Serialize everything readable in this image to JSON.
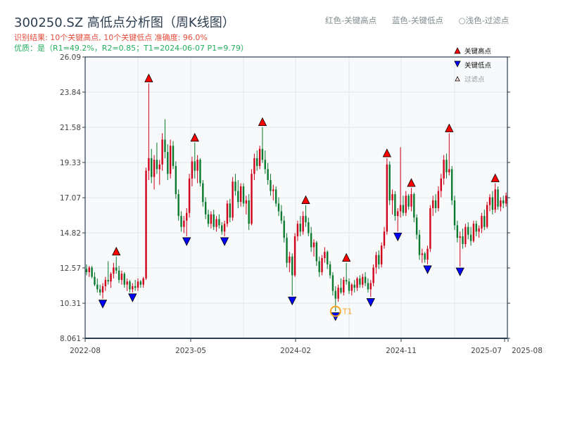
{
  "header": {
    "title": "300250.SZ 高低点分析图（周K线图）",
    "result": "识别结果: 10个关键高点, 10个关键低点   准确度: 96.0%",
    "quality": "优质：是（R1=49.2%，R2=0.85；T1=2024-06-07 P1=9.79）",
    "hints": [
      "红色-关键高点",
      "蓝色-关键低点",
      "○浅色-过滤点"
    ]
  },
  "chart_data": {
    "type": "candlestick",
    "period": "weekly",
    "start": "2022-08-01",
    "ylim": [
      8.061,
      26.09
    ],
    "yticks": [
      "26.09",
      "23.84",
      "21.58",
      "19.33",
      "17.07",
      "14.82",
      "12.57",
      "10.31",
      "8.061"
    ],
    "xticks": [
      "2022-08",
      "2023-05",
      "2024-02",
      "2024-11",
      "2025-07",
      "2025-08"
    ],
    "grid": true,
    "legend": {
      "placement": "top-right",
      "items": [
        "关键高点",
        "关键低点",
        "过滤点"
      ]
    },
    "colors": {
      "up": "#d0021b",
      "down": "#0a7a2f",
      "high": "#ff0000",
      "low": "#0000ff",
      "t1": "#f5a623"
    },
    "candles": [
      [
        12.5,
        12.8,
        12.1,
        12.3
      ],
      [
        12.3,
        12.7,
        12.0,
        12.6
      ],
      [
        12.6,
        12.7,
        11.9,
        12.0
      ],
      [
        12.0,
        12.3,
        11.4,
        11.5
      ],
      [
        11.5,
        11.9,
        11.0,
        11.2
      ],
      [
        11.2,
        11.5,
        10.8,
        11.0
      ],
      [
        11.0,
        11.6,
        10.6,
        11.4
      ],
      [
        11.4,
        12.0,
        11.1,
        11.8
      ],
      [
        11.8,
        13.0,
        11.5,
        11.7
      ],
      [
        11.7,
        12.3,
        11.3,
        12.2
      ],
      [
        12.2,
        12.9,
        11.9,
        12.6
      ],
      [
        12.6,
        13.3,
        12.2,
        12.4
      ],
      [
        12.4,
        12.7,
        11.6,
        11.8
      ],
      [
        11.8,
        12.4,
        11.5,
        12.2
      ],
      [
        12.2,
        12.3,
        11.3,
        11.5
      ],
      [
        11.5,
        11.9,
        11.1,
        11.7
      ],
      [
        11.7,
        11.8,
        11.0,
        11.2
      ],
      [
        11.2,
        11.6,
        11.0,
        11.4
      ],
      [
        11.4,
        11.8,
        11.1,
        11.3
      ],
      [
        11.3,
        11.9,
        11.1,
        11.7
      ],
      [
        11.7,
        11.8,
        11.3,
        11.5
      ],
      [
        11.5,
        12.0,
        11.3,
        11.9
      ],
      [
        11.9,
        19.0,
        11.8,
        18.8
      ],
      [
        18.8,
        24.4,
        18.2,
        19.6
      ],
      [
        19.6,
        20.2,
        18.0,
        18.4
      ],
      [
        18.4,
        19.8,
        17.6,
        19.5
      ],
      [
        19.5,
        20.6,
        18.6,
        18.9
      ],
      [
        18.9,
        19.5,
        17.9,
        19.2
      ],
      [
        19.2,
        21.2,
        18.8,
        20.8
      ],
      [
        20.8,
        22.1,
        19.6,
        20.0
      ],
      [
        20.0,
        20.5,
        18.2,
        18.6
      ],
      [
        18.6,
        20.8,
        18.3,
        20.4
      ],
      [
        20.4,
        20.7,
        18.9,
        19.1
      ],
      [
        19.1,
        19.4,
        17.0,
        17.3
      ],
      [
        17.3,
        17.6,
        15.6,
        15.9
      ],
      [
        15.9,
        16.2,
        14.9,
        15.2
      ],
      [
        15.2,
        15.9,
        14.8,
        15.6
      ],
      [
        15.6,
        16.4,
        14.6,
        16.1
      ],
      [
        16.1,
        18.6,
        15.8,
        18.3
      ],
      [
        18.3,
        19.7,
        17.8,
        19.4
      ],
      [
        19.4,
        20.6,
        18.3,
        18.8
      ],
      [
        18.8,
        19.8,
        18.0,
        19.5
      ],
      [
        19.5,
        19.6,
        17.8,
        18.0
      ],
      [
        18.0,
        18.2,
        16.5,
        16.8
      ],
      [
        16.8,
        17.1,
        15.7,
        16.0
      ],
      [
        16.0,
        16.3,
        15.2,
        15.4
      ],
      [
        15.4,
        16.2,
        15.1,
        16.0
      ],
      [
        16.0,
        16.3,
        15.0,
        15.2
      ],
      [
        15.2,
        15.9,
        14.9,
        15.7
      ],
      [
        15.7,
        16.0,
        15.1,
        15.3
      ],
      [
        15.3,
        15.5,
        14.7,
        14.9
      ],
      [
        14.9,
        15.6,
        14.6,
        15.4
      ],
      [
        15.4,
        16.9,
        15.2,
        16.7
      ],
      [
        16.7,
        17.0,
        15.5,
        15.8
      ],
      [
        15.8,
        18.4,
        15.6,
        18.1
      ],
      [
        18.1,
        18.6,
        17.2,
        17.5
      ],
      [
        17.5,
        18.2,
        16.4,
        16.8
      ],
      [
        16.8,
        18.0,
        16.5,
        17.8
      ],
      [
        17.8,
        18.0,
        16.5,
        16.7
      ],
      [
        16.7,
        17.2,
        16.0,
        16.9
      ],
      [
        16.9,
        17.3,
        15.0,
        15.4
      ],
      [
        15.4,
        18.9,
        15.3,
        18.6
      ],
      [
        18.6,
        19.9,
        18.2,
        19.6
      ],
      [
        19.6,
        20.1,
        18.8,
        19.1
      ],
      [
        19.1,
        20.4,
        18.9,
        20.2
      ],
      [
        20.2,
        21.6,
        19.3,
        19.5
      ],
      [
        19.5,
        20.1,
        18.6,
        18.9
      ],
      [
        18.9,
        19.3,
        17.9,
        18.2
      ],
      [
        18.2,
        18.6,
        17.2,
        17.5
      ],
      [
        17.5,
        17.9,
        16.9,
        17.6
      ],
      [
        17.6,
        17.8,
        16.5,
        16.7
      ],
      [
        16.7,
        17.1,
        15.9,
        16.2
      ],
      [
        16.2,
        16.6,
        15.4,
        15.6
      ],
      [
        15.6,
        15.9,
        14.2,
        14.5
      ],
      [
        14.5,
        14.8,
        12.6,
        12.9
      ],
      [
        12.9,
        13.6,
        12.3,
        13.3
      ],
      [
        13.3,
        13.5,
        10.8,
        12.1
      ],
      [
        12.1,
        14.8,
        12.0,
        14.6
      ],
      [
        14.6,
        15.6,
        14.3,
        15.4
      ],
      [
        15.4,
        15.9,
        14.6,
        14.9
      ],
      [
        14.9,
        16.2,
        14.7,
        15.9
      ],
      [
        15.9,
        16.6,
        15.2,
        15.5
      ],
      [
        15.5,
        15.8,
        14.6,
        14.8
      ],
      [
        14.8,
        15.2,
        13.6,
        13.9
      ],
      [
        13.9,
        14.4,
        13.3,
        14.2
      ],
      [
        14.2,
        14.3,
        12.7,
        13.0
      ],
      [
        13.0,
        13.3,
        12.0,
        12.3
      ],
      [
        12.3,
        13.4,
        12.1,
        13.2
      ],
      [
        13.2,
        13.9,
        12.9,
        13.6
      ],
      [
        13.6,
        13.7,
        12.5,
        12.8
      ],
      [
        12.8,
        13.0,
        11.9,
        12.1
      ],
      [
        12.1,
        12.3,
        10.8,
        11.1
      ],
      [
        11.1,
        11.4,
        9.79,
        10.6
      ],
      [
        10.6,
        11.5,
        10.4,
        11.3
      ],
      [
        11.3,
        11.9,
        10.9,
        11.0
      ],
      [
        11.0,
        12.0,
        10.8,
        11.8
      ],
      [
        11.8,
        12.9,
        11.5,
        11.7
      ],
      [
        11.7,
        11.9,
        10.9,
        11.1
      ],
      [
        11.1,
        11.6,
        10.8,
        11.5
      ],
      [
        11.5,
        11.8,
        11.0,
        11.3
      ],
      [
        11.3,
        12.0,
        11.1,
        11.9
      ],
      [
        11.9,
        12.1,
        11.3,
        11.5
      ],
      [
        11.5,
        12.2,
        11.3,
        12.0
      ],
      [
        12.0,
        12.3,
        11.4,
        11.6
      ],
      [
        11.6,
        11.9,
        11.0,
        11.2
      ],
      [
        11.2,
        11.8,
        10.7,
        11.6
      ],
      [
        11.6,
        12.8,
        11.4,
        12.6
      ],
      [
        12.6,
        13.6,
        12.2,
        13.4
      ],
      [
        13.4,
        13.7,
        12.5,
        12.8
      ],
      [
        12.8,
        14.2,
        12.6,
        14.0
      ],
      [
        14.0,
        15.2,
        13.8,
        14.9
      ],
      [
        14.9,
        19.6,
        14.7,
        19.2
      ],
      [
        19.2,
        19.4,
        16.6,
        16.9
      ],
      [
        16.9,
        17.6,
        16.0,
        17.3
      ],
      [
        17.3,
        17.5,
        15.6,
        15.9
      ],
      [
        15.9,
        16.4,
        14.9,
        16.2
      ],
      [
        16.2,
        20.3,
        15.8,
        16.6
      ],
      [
        16.6,
        17.2,
        15.9,
        16.1
      ],
      [
        16.1,
        17.5,
        15.9,
        17.2
      ],
      [
        17.2,
        17.3,
        16.3,
        16.5
      ],
      [
        16.5,
        17.7,
        16.2,
        17.3
      ],
      [
        17.3,
        17.4,
        15.5,
        15.8
      ],
      [
        15.8,
        16.0,
        14.4,
        14.7
      ],
      [
        14.7,
        15.0,
        13.1,
        13.4
      ],
      [
        13.4,
        13.8,
        12.9,
        13.5
      ],
      [
        13.5,
        13.6,
        12.9,
        13.1
      ],
      [
        13.1,
        14.0,
        12.8,
        13.8
      ],
      [
        13.8,
        16.6,
        13.6,
        16.4
      ],
      [
        16.4,
        17.2,
        15.9,
        16.9
      ],
      [
        16.9,
        17.3,
        16.1,
        16.4
      ],
      [
        16.4,
        17.8,
        16.2,
        17.5
      ],
      [
        17.5,
        18.6,
        17.1,
        18.3
      ],
      [
        18.3,
        19.8,
        17.9,
        19.5
      ],
      [
        19.5,
        19.9,
        18.3,
        18.7
      ],
      [
        18.7,
        21.2,
        18.5,
        18.9
      ],
      [
        18.9,
        19.1,
        16.6,
        16.9
      ],
      [
        16.9,
        17.2,
        15.0,
        15.3
      ],
      [
        15.3,
        15.6,
        14.2,
        14.5
      ],
      [
        14.5,
        14.9,
        12.66,
        14.6
      ],
      [
        14.6,
        15.1,
        13.8,
        14.1
      ],
      [
        14.1,
        15.4,
        13.9,
        15.2
      ],
      [
        15.2,
        15.5,
        14.4,
        14.7
      ],
      [
        14.7,
        15.2,
        14.0,
        14.3
      ],
      [
        14.3,
        15.6,
        14.2,
        15.4
      ],
      [
        15.4,
        15.6,
        14.6,
        14.9
      ],
      [
        14.9,
        15.3,
        14.5,
        15.1
      ],
      [
        15.1,
        16.1,
        14.8,
        15.9
      ],
      [
        15.9,
        16.3,
        15.0,
        15.2
      ],
      [
        15.2,
        16.8,
        15.1,
        16.6
      ],
      [
        16.6,
        17.3,
        16.2,
        17.1
      ],
      [
        17.1,
        17.5,
        16.0,
        16.3
      ],
      [
        16.3,
        18.0,
        16.1,
        17.6
      ],
      [
        17.6,
        17.8,
        16.3,
        16.5
      ],
      [
        16.5,
        17.1,
        16.2,
        16.9
      ],
      [
        16.9,
        17.2,
        16.4,
        16.7
      ],
      [
        16.7,
        17.4,
        16.5,
        17.2
      ]
    ],
    "key_highs": [
      11,
      23,
      40,
      65,
      81,
      96,
      111,
      120,
      134,
      151
    ],
    "key_lows": [
      6,
      17,
      37,
      51,
      76,
      92,
      105,
      115,
      126,
      138
    ],
    "t1": {
      "index": 92,
      "label": "T1",
      "price": 9.79
    }
  }
}
